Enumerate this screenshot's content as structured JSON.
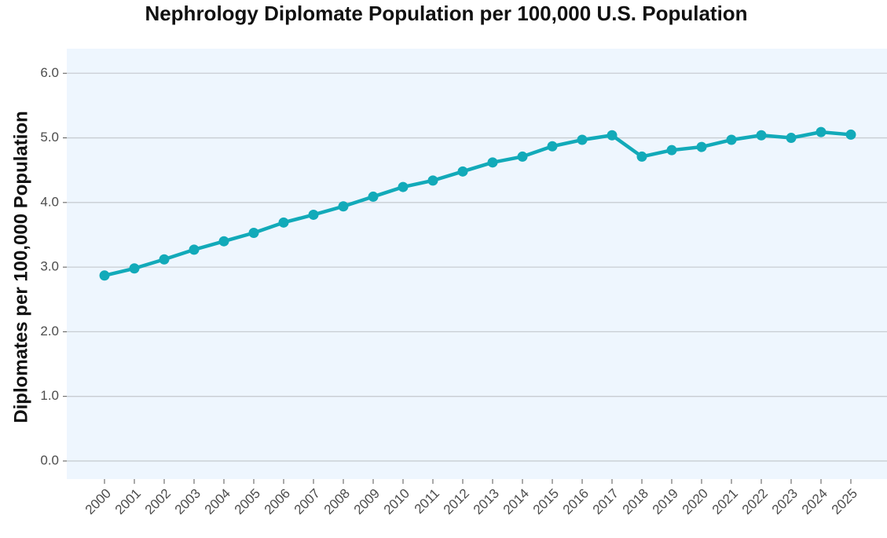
{
  "chart_data": {
    "type": "line",
    "title": "Nephrology Diplomate Population per 100,000 U.S. Population",
    "y_label": "Diplomates per 100,000 Population",
    "categories": [
      "2000",
      "2001",
      "2002",
      "2003",
      "2004",
      "2005",
      "2006",
      "2007",
      "2008",
      "2009",
      "2010",
      "2011",
      "2012",
      "2013",
      "2014",
      "2015",
      "2016",
      "2017",
      "2018",
      "2019",
      "2020",
      "2021",
      "2022",
      "2023",
      "2024",
      "2025"
    ],
    "values": [
      2.87,
      2.98,
      3.12,
      3.27,
      3.4,
      3.53,
      3.69,
      3.81,
      3.94,
      4.09,
      4.24,
      4.34,
      4.48,
      4.62,
      4.71,
      4.87,
      4.97,
      5.04,
      4.71,
      4.81,
      4.86,
      4.97,
      5.04,
      5.0,
      5.09,
      5.05
    ],
    "color": "#12aab9",
    "ylim": [
      -0.28,
      6.38
    ],
    "yticks": [
      {
        "value": 0,
        "label": "0.0"
      },
      {
        "value": 1,
        "label": "1.0"
      },
      {
        "value": 2,
        "label": "2.0"
      },
      {
        "value": 3,
        "label": "3.0"
      },
      {
        "value": 4,
        "label": "4.0"
      },
      {
        "value": 5,
        "label": "5.0"
      },
      {
        "value": 6,
        "label": "6.0"
      }
    ],
    "grid": true
  }
}
